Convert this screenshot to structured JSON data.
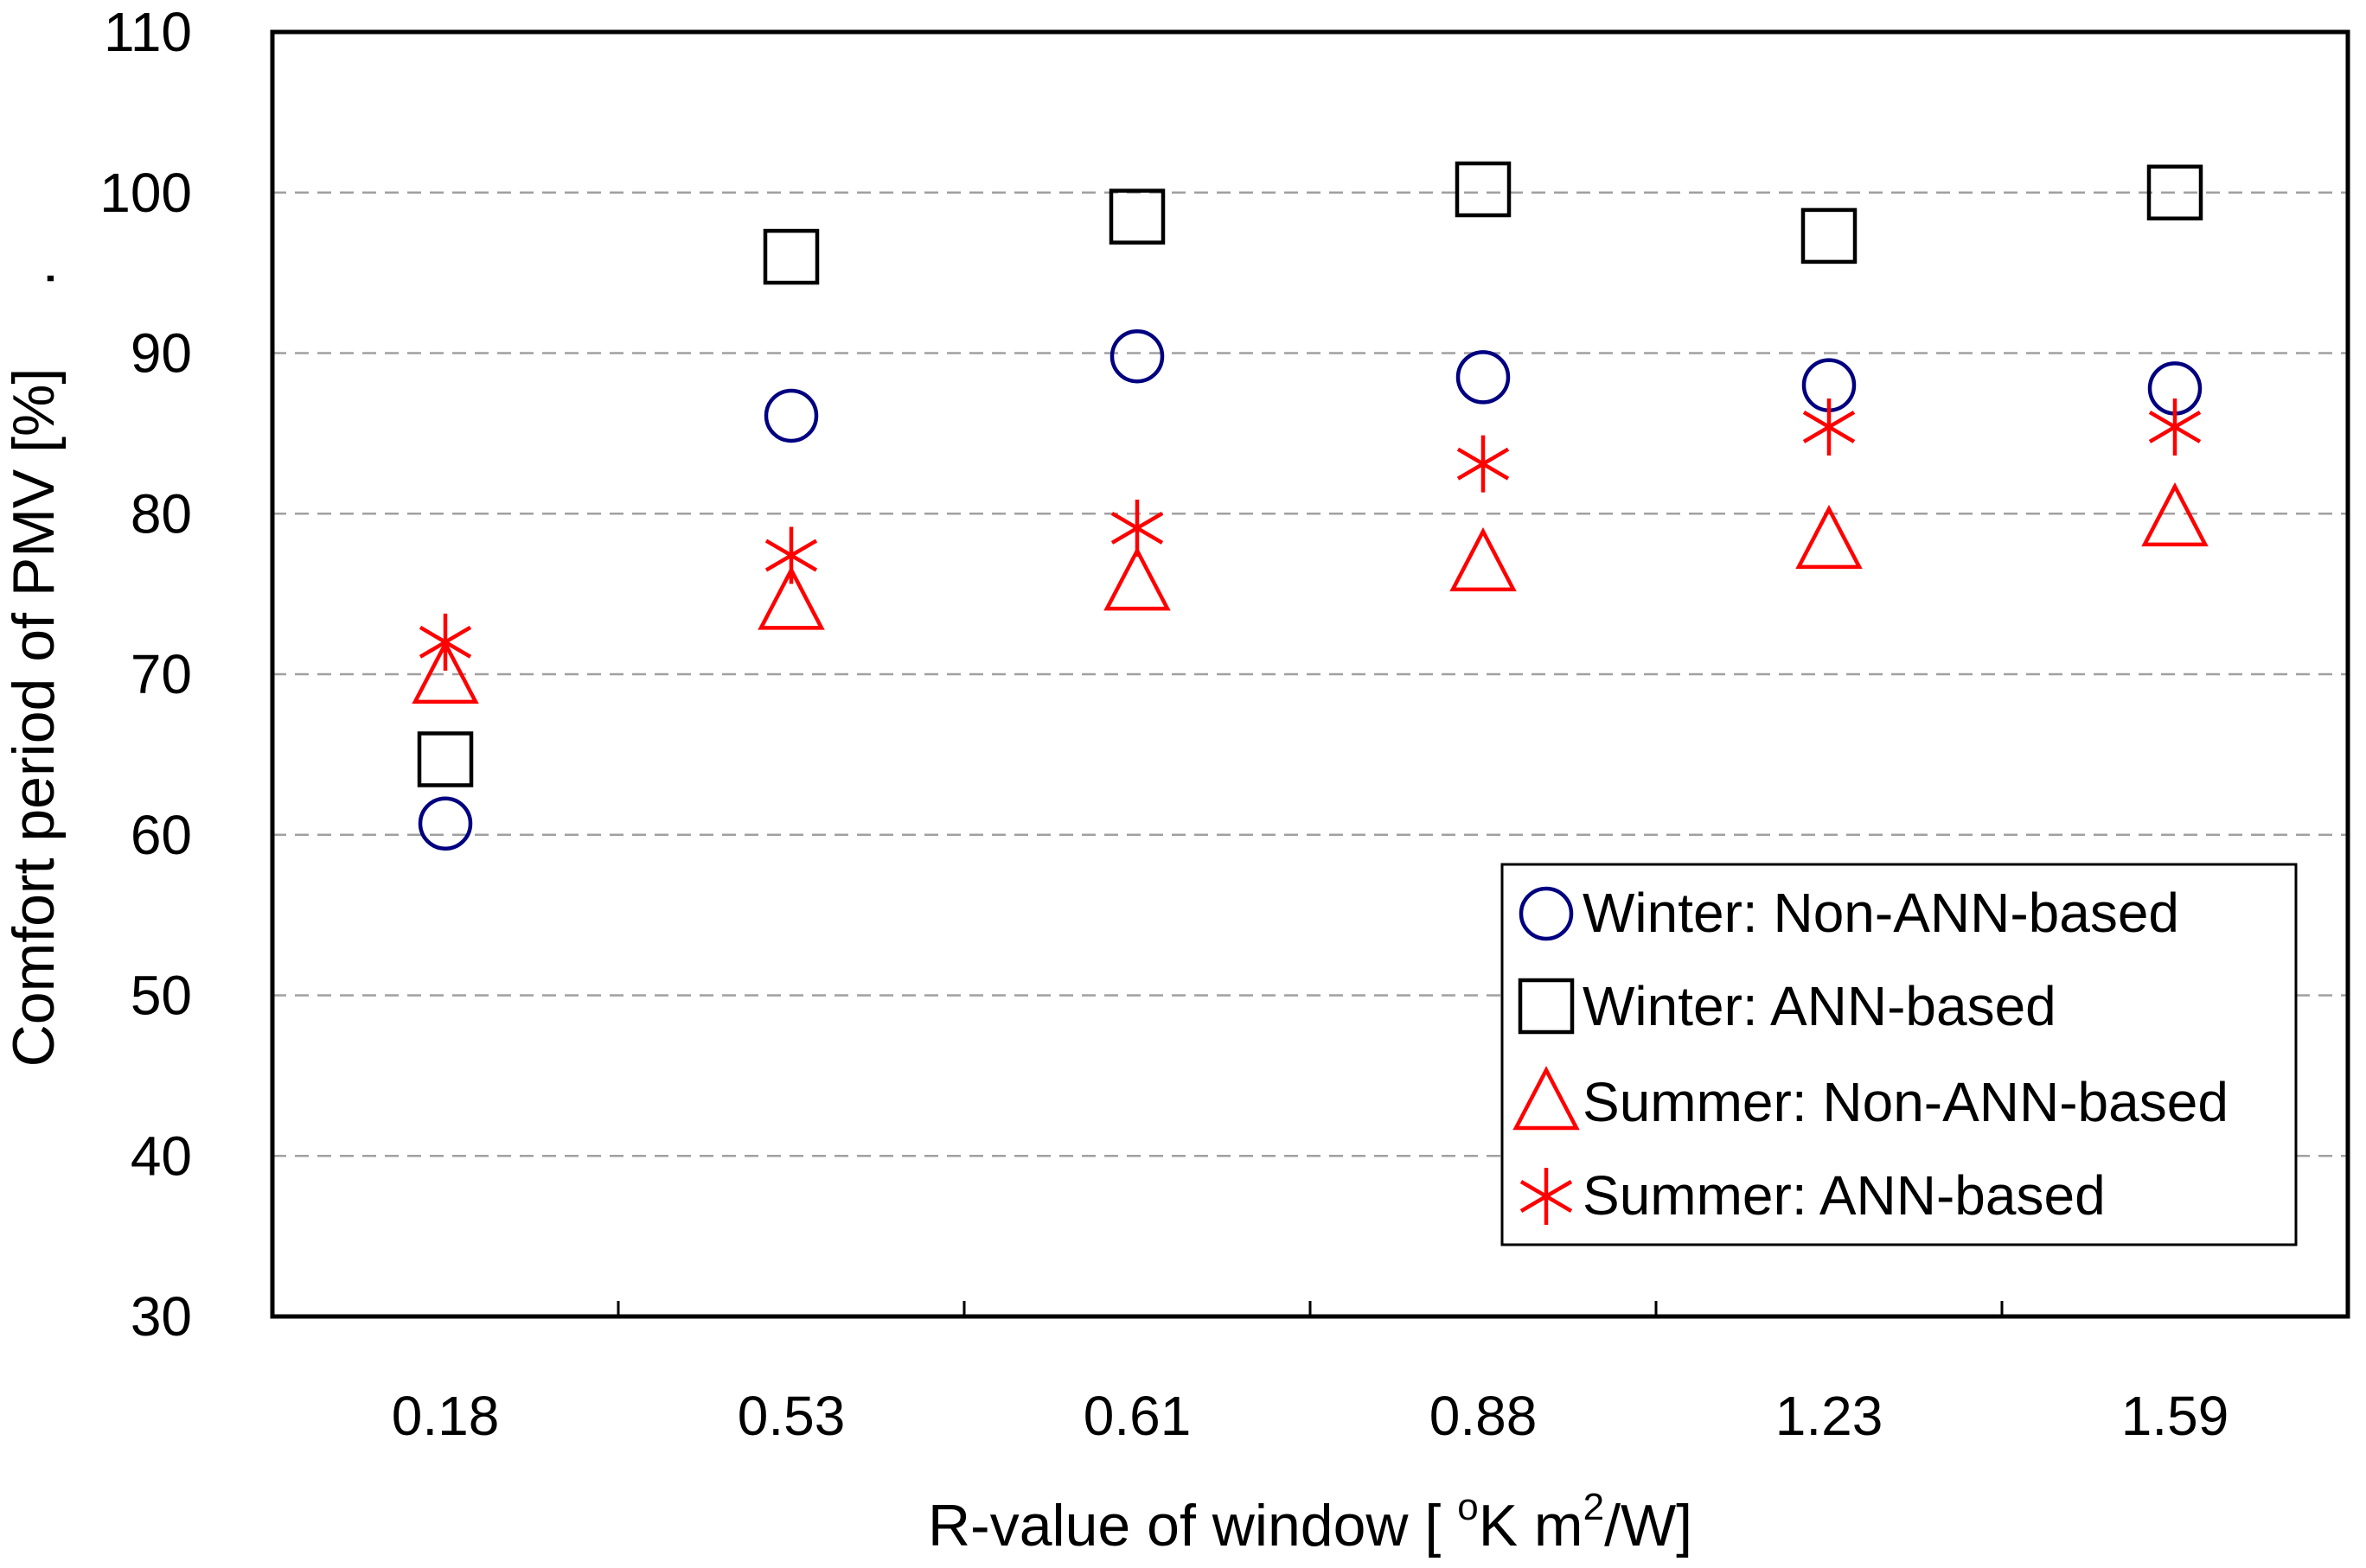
{
  "chart_data": {
    "type": "scatter",
    "title": "",
    "xlabel": "R-value of window [ °K m²/W]",
    "xlabel_parts": {
      "pre": "R-value of window [ ",
      "sup1": "o",
      "mid": "K m",
      "sup2": "2",
      "post": "/W]"
    },
    "ylabel": "Comfort period of PMV  [%]",
    "ylabel_trailing": ".",
    "categories": [
      "0.18",
      "0.53",
      "0.61",
      "0.88",
      "1.23",
      "1.59"
    ],
    "ylim": [
      30,
      110
    ],
    "yticks": [
      "30",
      "40",
      "50",
      "60",
      "70",
      "80",
      "90",
      "100",
      "110"
    ],
    "grid": true,
    "legend_position": "bottom-right",
    "series": [
      {
        "name": "Winter: Non-ANN-based",
        "marker": "circle",
        "color": "#000080",
        "values": [
          60.7,
          86.1,
          89.8,
          88.5,
          88.0,
          87.8
        ]
      },
      {
        "name": "Winter: ANN-based",
        "marker": "square",
        "color": "#000000",
        "values": [
          64.7,
          96.0,
          98.5,
          100.2,
          97.3,
          100.0
        ]
      },
      {
        "name": "Summer: Non-ANN-based",
        "marker": "triangle",
        "color": "#ff0000",
        "values": [
          69.9,
          74.5,
          75.7,
          76.9,
          78.3,
          79.7
        ]
      },
      {
        "name": "Summer: ANN-based",
        "marker": "asterisk",
        "color": "#ff0000",
        "values": [
          72.0,
          77.4,
          79.1,
          83.1,
          85.4,
          85.4
        ]
      }
    ]
  }
}
